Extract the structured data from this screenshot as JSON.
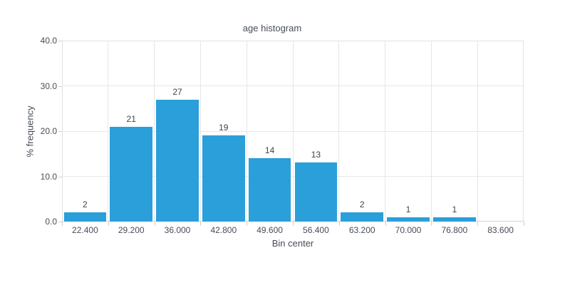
{
  "colors": {
    "bar": "#2a9fda",
    "grid": "#e7e7e7",
    "border": "#e2e2e2",
    "axis_line": "#d4d4d4",
    "tick": "#cfcfcf",
    "text": "#474d57",
    "value_label_text": "#3d434d",
    "background": "#ffffff"
  },
  "chart_data": {
    "type": "bar",
    "title": "age histogram",
    "xlabel": "Bin center",
    "ylabel": "% frequency",
    "categories": [
      "22.400",
      "29.200",
      "36.000",
      "42.800",
      "49.600",
      "56.400",
      "63.200",
      "70.000",
      "76.800",
      "83.600"
    ],
    "values": [
      2,
      21,
      27,
      19,
      14,
      13,
      2,
      1,
      1,
      null
    ],
    "bar_labels": [
      "2",
      "21",
      "27",
      "19",
      "14",
      "13",
      "2",
      "1",
      "1",
      ""
    ],
    "ylim": [
      0,
      40
    ],
    "yticks": [
      {
        "value": 0,
        "label": "0.0"
      },
      {
        "value": 10,
        "label": "10.0"
      },
      {
        "value": 20,
        "label": "20.0"
      },
      {
        "value": 30,
        "label": "30.0"
      },
      {
        "value": 40,
        "label": "40.0"
      }
    ],
    "grid": true,
    "legend": false
  }
}
